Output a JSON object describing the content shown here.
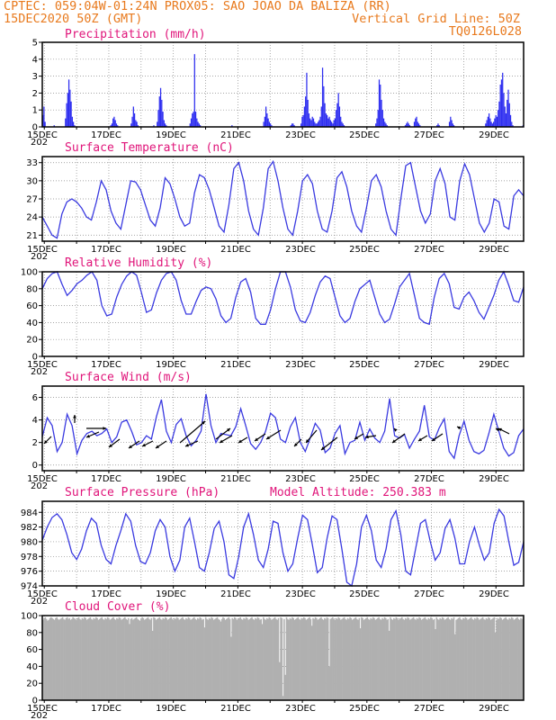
{
  "header": {
    "line1": "CPTEC:   059:04W-01:24N  PROX05: SAO JOAO DA BALIZA (RR)",
    "date": "15DEC2020 50Z (GMT)",
    "grid": "Vertical Grid Line: 50Z",
    "code": "TQ0126L028"
  },
  "x_labels": [
    "15DEC",
    "17DEC",
    "19DEC",
    "21DEC",
    "23DEC",
    "25DEC",
    "27DEC",
    "29DEC"
  ],
  "x_sublabel": "202",
  "colors": {
    "line": "#3a3ae0",
    "bar": "#2e2ef0",
    "cloud": "#b0b0b0",
    "header": "#e87a1e",
    "title": "#e0157a"
  },
  "chart_data": [
    {
      "type": "bar",
      "title": "Precipitation (mm/h)",
      "ylim": [
        0,
        5
      ],
      "yticks": [
        0,
        1,
        2,
        3,
        4,
        5
      ],
      "grid": true,
      "values": [
        0.7,
        1.2,
        0.3,
        0,
        0,
        0,
        0,
        0,
        0,
        0,
        0.1,
        0,
        0,
        0,
        0,
        0,
        0,
        0,
        0,
        0,
        0.5,
        1.4,
        2.0,
        2.8,
        2.2,
        1.5,
        0.6,
        0.3,
        0.1,
        0,
        0,
        0,
        0,
        0,
        0,
        0,
        0,
        0,
        0,
        0,
        0,
        0,
        0,
        0,
        0,
        0,
        0,
        0,
        0,
        0,
        0,
        0,
        0,
        0,
        0,
        0,
        0,
        0,
        0,
        0,
        0.1,
        0.2,
        0.5,
        0.6,
        0.4,
        0.2,
        0.1,
        0,
        0,
        0,
        0,
        0,
        0,
        0,
        0,
        0,
        0,
        0,
        0.2,
        0.6,
        1.2,
        0.8,
        0.4,
        0.3,
        0.1,
        0,
        0,
        0,
        0,
        0,
        0,
        0,
        0,
        0,
        0,
        0,
        0,
        0,
        0.1,
        0,
        0,
        0.3,
        1.0,
        1.8,
        2.3,
        1.6,
        0.9,
        0.4,
        0.2,
        0.1,
        0,
        0,
        0,
        0,
        0,
        0,
        0,
        0,
        0,
        0,
        0,
        0,
        0,
        0,
        0,
        0,
        0,
        0,
        0,
        0,
        0.2,
        0.5,
        0.8,
        0.9,
        4.3,
        0.9,
        0.5,
        0.3,
        0.2,
        0.1,
        0,
        0,
        0,
        0,
        0,
        0,
        0,
        0,
        0,
        0,
        0,
        0,
        0,
        0,
        0,
        0,
        0,
        0,
        0,
        0,
        0,
        0,
        0,
        0,
        0,
        0,
        0,
        0.1,
        0,
        0,
        0,
        0,
        0,
        0,
        0,
        0,
        0,
        0,
        0,
        0,
        0,
        0,
        0,
        0,
        0,
        0,
        0,
        0,
        0,
        0,
        0,
        0,
        0,
        0,
        0,
        0.3,
        0.6,
        1.2,
        0.8,
        0.5,
        0.3,
        0.2,
        0.1,
        0,
        0,
        0,
        0,
        0,
        0,
        0,
        0,
        0,
        0,
        0,
        0,
        0,
        0,
        0,
        0,
        0.1,
        0.2,
        0.2,
        0.1,
        0,
        0,
        0,
        0,
        0,
        0.2,
        0.6,
        0.7,
        1.2,
        1.8,
        3.2,
        1.6,
        0.8,
        0.5,
        0.4,
        0.6,
        0.5,
        0.3,
        0.2,
        0.2,
        0.3,
        0.4,
        0.6,
        1.2,
        3.5,
        2.4,
        1.4,
        0.8,
        0.7,
        0.5,
        0.6,
        0.4,
        0.3,
        0.2,
        0.4,
        0.5,
        1.0,
        1.4,
        2.0,
        1.2,
        0.6,
        0.3,
        0.2,
        0.1,
        0,
        0,
        0,
        0,
        0,
        0,
        0,
        0,
        0,
        0,
        0,
        0,
        0,
        0,
        0,
        0,
        0,
        0,
        0,
        0,
        0,
        0,
        0,
        0,
        0,
        0,
        0,
        0.2,
        0.5,
        1.0,
        2.8,
        2.5,
        1.6,
        1.0,
        0.5,
        0.3,
        0.2,
        0.1,
        0,
        0,
        0,
        0,
        0,
        0,
        0,
        0,
        0,
        0,
        0,
        0,
        0,
        0,
        0,
        0.1,
        0.2,
        0.3,
        0.2,
        0.1,
        0,
        0,
        0,
        0.3,
        0.5,
        0.6,
        0.3,
        0.2,
        0.1,
        0,
        0,
        0,
        0,
        0,
        0,
        0,
        0,
        0,
        0,
        0,
        0,
        0,
        0,
        0.1,
        0.2,
        0.1,
        0,
        0,
        0,
        0,
        0,
        0,
        0,
        0,
        0.3,
        0.6,
        0.4,
        0.2,
        0.1,
        0,
        0,
        0,
        0,
        0,
        0,
        0,
        0,
        0,
        0,
        0,
        0,
        0,
        0,
        0,
        0,
        0,
        0,
        0,
        0,
        0,
        0,
        0,
        0,
        0,
        0,
        0,
        0.2,
        0.4,
        0.6,
        0.8,
        0.5,
        0.3,
        0.2,
        0.3,
        0.5,
        0.7,
        0.6,
        1.0,
        1.5,
        2.5,
        2.8,
        3.2,
        2.0,
        1.2,
        0.8,
        1.6,
        2.2,
        1.4,
        0.7,
        0.3,
        0.1,
        0,
        0,
        0,
        0,
        0,
        0,
        0,
        0,
        0.1
      ]
    },
    {
      "type": "line",
      "title": "Surface Temperature (nC)",
      "ylim": [
        20,
        34
      ],
      "yticks": [
        21,
        24,
        27,
        30,
        33
      ],
      "grid": true,
      "values": [
        24.0,
        22.5,
        21.0,
        20.5,
        24.5,
        26.5,
        27.0,
        26.5,
        25.5,
        24.0,
        23.5,
        26.5,
        30.0,
        28.5,
        25.0,
        23.0,
        22.0,
        26.0,
        30.0,
        29.8,
        28.5,
        26.0,
        23.5,
        22.5,
        25.5,
        30.5,
        29.5,
        27.0,
        24.0,
        22.5,
        23.0,
        28.0,
        31.0,
        30.5,
        28.5,
        25.5,
        22.5,
        21.5,
        26.0,
        32.0,
        33.0,
        30.0,
        25.0,
        22.0,
        21.0,
        25.5,
        32.0,
        33.2,
        30.0,
        25.5,
        22.0,
        21.0,
        25.0,
        30.0,
        31.0,
        29.5,
        25.0,
        22.0,
        21.5,
        25.0,
        30.5,
        31.5,
        29.0,
        25.0,
        22.5,
        21.5,
        25.5,
        30.0,
        31.0,
        29.0,
        25.0,
        22.0,
        21.0,
        27.0,
        32.5,
        33.0,
        29.0,
        25.0,
        23.0,
        24.5,
        30.0,
        32.0,
        29.5,
        24.0,
        23.5,
        30.0,
        32.8,
        31.0,
        27.0,
        23.0,
        21.5,
        23.0,
        27.0,
        26.5,
        22.5,
        22.0,
        27.5,
        28.5,
        27.5
      ]
    },
    {
      "type": "line",
      "title": "Relative Humidity (%)",
      "ylim": [
        0,
        100
      ],
      "yticks": [
        0,
        20,
        40,
        60,
        80,
        100
      ],
      "grid": true,
      "values": [
        80,
        92,
        98,
        100,
        85,
        72,
        78,
        86,
        90,
        96,
        100,
        90,
        60,
        48,
        50,
        70,
        85,
        95,
        100,
        96,
        75,
        52,
        55,
        75,
        90,
        98,
        100,
        90,
        66,
        50,
        50,
        65,
        78,
        82,
        80,
        68,
        48,
        40,
        45,
        70,
        88,
        92,
        76,
        45,
        38,
        38,
        55,
        80,
        100,
        100,
        82,
        55,
        42,
        40,
        52,
        72,
        88,
        95,
        92,
        70,
        48,
        40,
        45,
        65,
        80,
        85,
        90,
        70,
        50,
        40,
        44,
        62,
        82,
        90,
        98,
        72,
        45,
        40,
        38,
        70,
        92,
        98,
        86,
        58,
        56,
        70,
        76,
        66,
        52,
        44,
        58,
        72,
        90,
        100,
        84,
        66,
        64,
        82
      ]
    },
    {
      "type": "line",
      "title": "Surface Wind (m/s)",
      "ylim": [
        -0.5,
        7
      ],
      "yticks": [
        0,
        2,
        4,
        6
      ],
      "grid": true,
      "values": [
        2.5,
        4.2,
        3.5,
        1.2,
        2.0,
        4.5,
        3.5,
        1.0,
        2.2,
        2.8,
        3.0,
        2.6,
        2.8,
        3.2,
        2.0,
        2.5,
        3.8,
        4.0,
        3.0,
        1.8,
        2.0,
        2.6,
        2.3,
        4.3,
        5.8,
        3.0,
        2.0,
        3.6,
        4.1,
        2.6,
        1.7,
        2.2,
        3.0,
        6.3,
        3.5,
        2.0,
        2.8,
        2.7,
        2.6,
        3.4,
        5.0,
        3.5,
        1.9,
        1.4,
        2.0,
        3.0,
        4.6,
        4.2,
        2.3,
        2.0,
        3.4,
        4.2,
        2.0,
        1.2,
        2.4,
        3.7,
        3.1,
        1.1,
        1.5,
        2.8,
        3.5,
        1.0,
        2.0,
        2.2,
        3.8,
        2.2,
        3.2,
        2.4,
        2.0,
        3.0,
        5.9,
        2.6,
        2.4,
        2.7,
        1.5,
        2.3,
        3.0,
        5.3,
        2.5,
        2.2,
        3.3,
        4.1,
        1.2,
        0.6,
        2.6,
        3.9,
        2.2,
        1.2,
        1.0,
        1.3,
        2.8,
        4.5,
        3.0,
        1.5,
        0.8,
        1.1,
        2.6,
        3.2
      ]
    },
    {
      "type": "line",
      "title": "Surface Pressure (hPa)",
      "annotation": "Model Altitude: 250.383 m",
      "ylim": [
        974,
        985.5
      ],
      "yticks": [
        974,
        976,
        978,
        980,
        982,
        984
      ],
      "grid": true,
      "values": [
        980.2,
        982.0,
        983.3,
        983.8,
        983.0,
        981.0,
        978.5,
        977.6,
        979.0,
        981.5,
        983.2,
        982.5,
        979.5,
        977.6,
        977.0,
        979.5,
        981.5,
        983.8,
        982.8,
        979.5,
        977.3,
        977.0,
        978.5,
        981.5,
        983.0,
        982.0,
        978.0,
        976.0,
        977.5,
        982.0,
        983.2,
        980.0,
        976.5,
        976.0,
        978.5,
        981.8,
        982.8,
        980.0,
        975.5,
        975.0,
        978.0,
        982.0,
        983.8,
        981.0,
        977.5,
        976.5,
        979.0,
        982.8,
        982.5,
        978.5,
        976.0,
        977.0,
        980.5,
        983.6,
        983.0,
        979.5,
        975.8,
        976.5,
        980.5,
        983.5,
        983.0,
        979.0,
        974.5,
        974.0,
        977.0,
        982.0,
        983.6,
        981.5,
        977.5,
        976.5,
        979.0,
        983.0,
        984.2,
        981.0,
        976.0,
        975.5,
        979.0,
        982.5,
        983.0,
        980.0,
        977.5,
        978.5,
        981.8,
        983.0,
        980.5,
        977.0,
        977.0,
        980.0,
        982.0,
        979.5,
        977.5,
        978.5,
        982.5,
        984.4,
        983.5,
        980.0,
        976.8,
        977.2,
        980.0
      ]
    },
    {
      "type": "bar",
      "title": "Cloud Cover (%)",
      "ylim": [
        0,
        100
      ],
      "yticks": [
        0,
        20,
        40,
        60,
        80,
        100
      ],
      "grid": true,
      "values": [
        95,
        97,
        98,
        96,
        94,
        95,
        97,
        98,
        97,
        96,
        95,
        97,
        98,
        96,
        95,
        96,
        97,
        98,
        96,
        95,
        97,
        98,
        96,
        97,
        95,
        96,
        98,
        97,
        96,
        95,
        97,
        98,
        96,
        95,
        97,
        96,
        98,
        97,
        95,
        96,
        97,
        98,
        96,
        95,
        97,
        96,
        98,
        97,
        95,
        96,
        97,
        98,
        96,
        95,
        97,
        96,
        98,
        97,
        95,
        96,
        97,
        98,
        96,
        95,
        97,
        96,
        98,
        97,
        95,
        96,
        97,
        98,
        96,
        95,
        97,
        90,
        96,
        97,
        95,
        96,
        97,
        98,
        96,
        95,
        94,
        96,
        98,
        97,
        95,
        96,
        97,
        98,
        96,
        95,
        97,
        96,
        98,
        97,
        95,
        96,
        97,
        98,
        96,
        95,
        97,
        96,
        98,
        97,
        95,
        96,
        97,
        98,
        96,
        95,
        97,
        96,
        98,
        97,
        95,
        96,
        97,
        98,
        96,
        95,
        97,
        96,
        98,
        97,
        95,
        96,
        97,
        98,
        96,
        95,
        97,
        96,
        98,
        97,
        95,
        96,
        97,
        98,
        96,
        95,
        97,
        96,
        98,
        97,
        95,
        96,
        97,
        98,
        96,
        95,
        93,
        96,
        98,
        97,
        95,
        96,
        97,
        98,
        96,
        95,
        97,
        96,
        98,
        97,
        95,
        96,
        97,
        98,
        96,
        95,
        97,
        96,
        98,
        97,
        95,
        96,
        97,
        98,
        96,
        95,
        97,
        96,
        98,
        97,
        95,
        96,
        97,
        98,
        96,
        95,
        97,
        96,
        98,
        97,
        95,
        96,
        97,
        98,
        96,
        95,
        97,
        96,
        98,
        97,
        95,
        96,
        97,
        98,
        96,
        95,
        97,
        96,
        98,
        97,
        95,
        96,
        97,
        98,
        96,
        95,
        97,
        96,
        98,
        97,
        95,
        96,
        97,
        98,
        96,
        95,
        97,
        96,
        98,
        97,
        95,
        96,
        97,
        98,
        96,
        95,
        97,
        96,
        98,
        97,
        95,
        96,
        97,
        98,
        96,
        95,
        97,
        96,
        98,
        97,
        95,
        96,
        97,
        98,
        96,
        95,
        97,
        96,
        98,
        97,
        95,
        96,
        97,
        98,
        96,
        95,
        97,
        96,
        98,
        97,
        95,
        96,
        97,
        98,
        96,
        95,
        97,
        96,
        98,
        97,
        95,
        96,
        97,
        98,
        96,
        95,
        97,
        96,
        98,
        97,
        95,
        96,
        97,
        98,
        96,
        95,
        97,
        96,
        98,
        97,
        95,
        96,
        97,
        98,
        96,
        95,
        97,
        96,
        98,
        97,
        95,
        96,
        97,
        98,
        96,
        95,
        97,
        96,
        98,
        97,
        95,
        96,
        97,
        98,
        96,
        95,
        97,
        96,
        98,
        97,
        95,
        96,
        97,
        98,
        96,
        95,
        97,
        96,
        98,
        97,
        95,
        96,
        97,
        98,
        96,
        95,
        97,
        96,
        98,
        97,
        95,
        96,
        97,
        98,
        96,
        95,
        97,
        96,
        98,
        97,
        95,
        96,
        97,
        98,
        96,
        95,
        97,
        96,
        98,
        97,
        95,
        96,
        97,
        98,
        96,
        95,
        97,
        96,
        98,
        97,
        95,
        96,
        97,
        98,
        96,
        95,
        97,
        96,
        98,
        97,
        95,
        96,
        97,
        98,
        96,
        95,
        97,
        96,
        98,
        97,
        95,
        96,
        97,
        98,
        96,
        95,
        97,
        96,
        98
      ],
      "dips": [
        [
          95,
          82
        ],
        [
          140,
          86
        ],
        [
          163,
          75
        ],
        [
          190,
          90
        ],
        [
          205,
          45
        ],
        [
          208,
          5
        ],
        [
          210,
          30
        ],
        [
          233,
          88
        ],
        [
          248,
          40
        ],
        [
          275,
          85
        ],
        [
          300,
          82
        ],
        [
          340,
          84
        ],
        [
          357,
          78
        ],
        [
          392,
          80
        ]
      ]
    }
  ]
}
